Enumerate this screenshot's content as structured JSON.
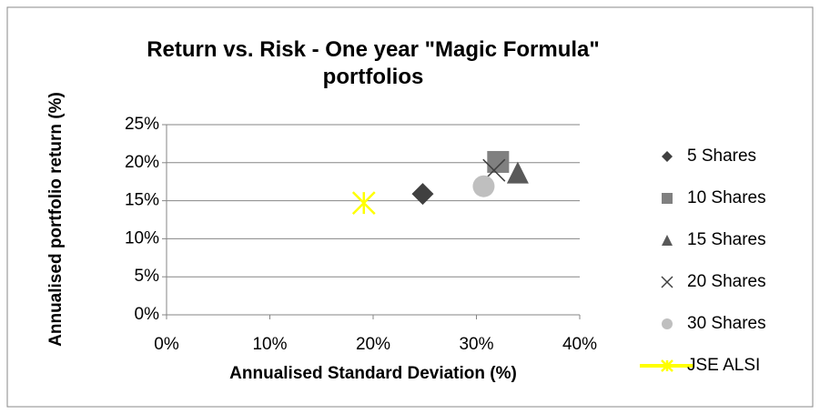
{
  "chart_data": {
    "type": "scatter",
    "title": "Return vs. Risk - One year \"Magic Formula\" portfolios",
    "x_label": "Annualised Standard Deviation (%)",
    "y_label": "Annualised portfolio return (%)",
    "xlim": [
      0,
      40
    ],
    "ylim": [
      0,
      25
    ],
    "xticks": [
      {
        "value": 0,
        "label": "0%"
      },
      {
        "value": 10,
        "label": "10%"
      },
      {
        "value": 20,
        "label": "20%"
      },
      {
        "value": 30,
        "label": "30%"
      },
      {
        "value": 40,
        "label": "40%"
      }
    ],
    "yticks": [
      {
        "value": 0,
        "label": "0%"
      },
      {
        "value": 5,
        "label": "5%"
      },
      {
        "value": 10,
        "label": "10%"
      },
      {
        "value": 15,
        "label": "15%"
      },
      {
        "value": 20,
        "label": "20%"
      },
      {
        "value": 25,
        "label": "25%"
      }
    ],
    "grid": true,
    "legend": "right",
    "series": [
      {
        "name": "5 Shares",
        "color": "#404040",
        "marker": "diamond",
        "x": [
          24.8
        ],
        "values": [
          15.9
        ]
      },
      {
        "name": "10 Shares",
        "color": "#808080",
        "marker": "square",
        "x": [
          32.1
        ],
        "values": [
          20.1
        ]
      },
      {
        "name": "15 Shares",
        "color": "#595959",
        "marker": "triangle",
        "x": [
          34.0
        ],
        "values": [
          18.7
        ]
      },
      {
        "name": "20 Shares",
        "color": "#404040",
        "marker": "x",
        "x": [
          31.7
        ],
        "values": [
          19.0
        ]
      },
      {
        "name": "30 Shares",
        "color": "#bfbfbf",
        "marker": "circle",
        "x": [
          30.7
        ],
        "values": [
          16.9
        ]
      },
      {
        "name": "JSE ALSI",
        "color": "#ffff00",
        "marker": "star",
        "x": [
          19.1
        ],
        "values": [
          14.7
        ]
      }
    ]
  }
}
